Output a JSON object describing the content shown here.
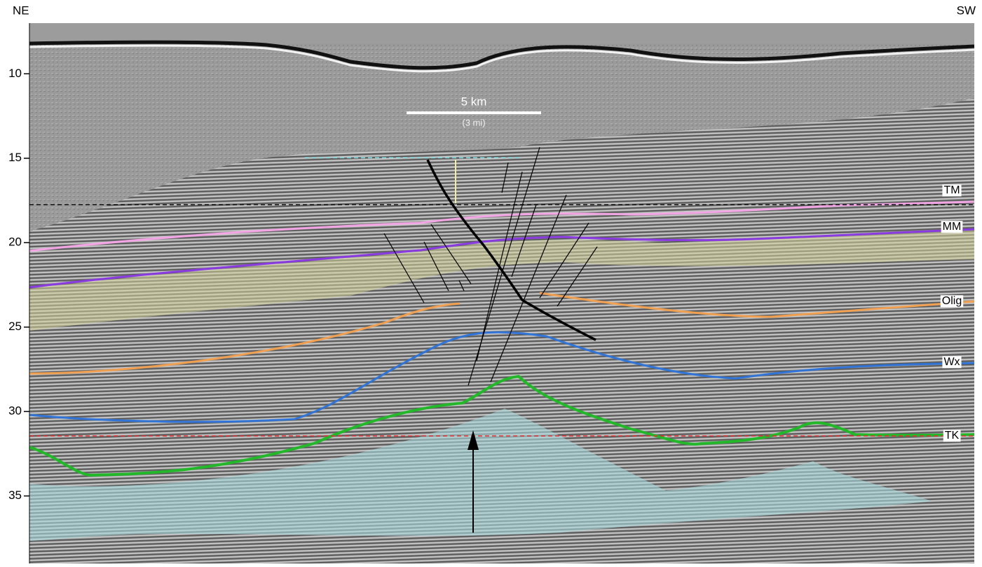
{
  "section": {
    "labels": {
      "left": "NE",
      "right": "SW"
    },
    "axis": {
      "ylim": [
        7,
        39
      ],
      "ticks": [
        10,
        15,
        20,
        25,
        30,
        35
      ]
    },
    "scale_bar": {
      "label": "5 km",
      "sublabel": "(3 mi)"
    },
    "horizons": [
      "TM",
      "MM",
      "Olig",
      "Wx",
      "TK"
    ]
  }
}
